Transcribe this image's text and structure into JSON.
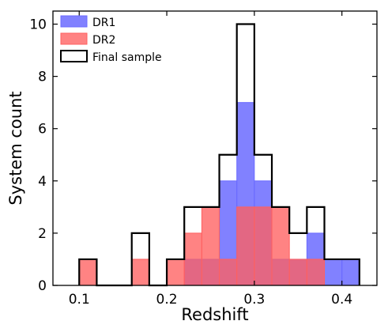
{
  "chart_data": {
    "type": "histogram",
    "xlabel": "Redshift",
    "ylabel": "System count",
    "xlim": [
      0.07,
      0.44
    ],
    "ylim": [
      0,
      10.5
    ],
    "bin_width": 0.02,
    "bin_edges": [
      0.1,
      0.12,
      0.14,
      0.16,
      0.18,
      0.2,
      0.22,
      0.24,
      0.26,
      0.28,
      0.3,
      0.32,
      0.34,
      0.36,
      0.38,
      0.4,
      0.42
    ],
    "x_ticks": [
      {
        "value": 0.1,
        "label": "0.1"
      },
      {
        "value": 0.2,
        "label": "0.2"
      },
      {
        "value": 0.3,
        "label": "0.3"
      },
      {
        "value": 0.4,
        "label": "0.4"
      }
    ],
    "y_ticks": [
      {
        "value": 0,
        "label": "0"
      },
      {
        "value": 2,
        "label": "2"
      },
      {
        "value": 4,
        "label": "4"
      },
      {
        "value": 6,
        "label": "6"
      },
      {
        "value": 8,
        "label": "8"
      },
      {
        "value": 10,
        "label": "10"
      }
    ],
    "legend_position": "top-left",
    "series": [
      {
        "name": "DR1",
        "style": "filled",
        "color": "#6b6bff",
        "opacity": 0.85,
        "values": [
          0,
          0,
          0,
          0,
          0,
          0,
          1,
          1,
          4,
          7,
          4,
          1,
          1,
          2,
          1,
          1
        ]
      },
      {
        "name": "DR2",
        "style": "filled",
        "color": "#ff6060",
        "opacity": 0.78,
        "values": [
          1,
          0,
          0,
          1,
          0,
          1,
          2,
          3,
          1,
          3,
          3,
          3,
          1,
          1,
          0,
          0
        ]
      },
      {
        "name": "Final sample",
        "style": "step",
        "color": "#000000",
        "values": [
          1,
          0,
          0,
          2,
          0,
          1,
          3,
          3,
          5,
          10,
          5,
          3,
          2,
          3,
          1,
          1
        ]
      }
    ]
  }
}
